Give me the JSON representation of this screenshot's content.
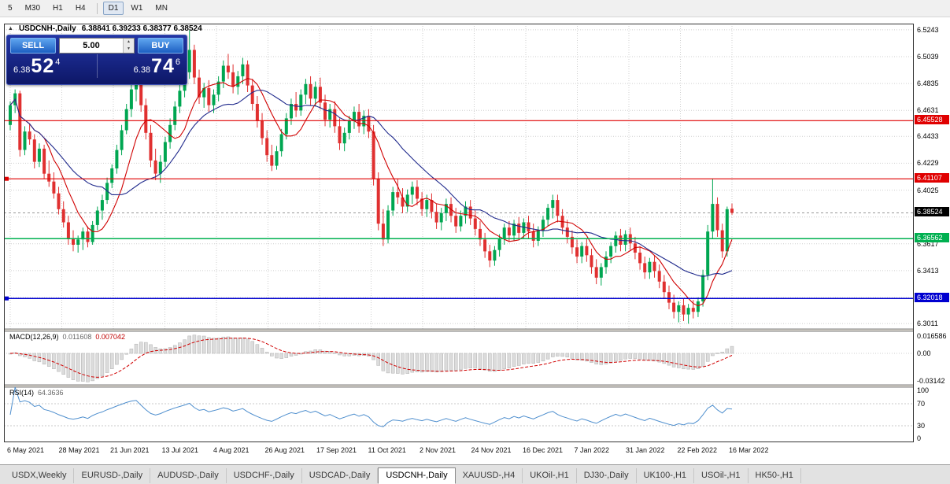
{
  "colors": {
    "bull": "#00a651",
    "bear": "#e03030",
    "ma_fast": "#d00000",
    "ma_slow": "#202a8c",
    "grid": "#cfcfcf",
    "level_red": "#e00000",
    "level_green": "#00b050",
    "level_blue": "#0000d0",
    "current_price_bg": "#000000",
    "macd_hist": "#dcdcdc",
    "macd_hist_stroke": "#b0b0b0",
    "macd_signal": "#d00000",
    "rsi_line": "#4f8fce"
  },
  "icons": {
    "collapse_arrow": "▲",
    "spin_up": "▲",
    "spin_down": "▼"
  },
  "toolbar": {
    "timeframe_groups": [
      [
        "5",
        "M30",
        "H1",
        "H4"
      ],
      [
        "D1",
        "W1",
        "MN"
      ]
    ],
    "active": "D1"
  },
  "readout": {
    "symbol": "USDCNH-,Daily",
    "ohlc": "6.38841 6.39233 6.38377 6.38524"
  },
  "trade_panel": {
    "sell_label": "SELL",
    "buy_label": "BUY",
    "volume": "5.00",
    "sell_price": {
      "prefix": "6.38",
      "big": "52",
      "sup": "4"
    },
    "buy_price": {
      "prefix": "6.38",
      "big": "74",
      "sup": "6"
    }
  },
  "tabs": {
    "labels": [
      "USDX,Weekly",
      "EURUSD-,Daily",
      "AUDUSD-,Daily",
      "USDCHF-,Daily",
      "USDCAD-,Daily",
      "USDCNH-,Daily",
      "XAUUSD-,H4",
      "UKOil-,H1",
      "DJ30-,Daily",
      "UK100-,H1",
      "USOil-,H1",
      "HK50-,H1"
    ],
    "active": "USDCNH-,Daily"
  },
  "chart_data": {
    "type": "candlestick",
    "title": "USDCNH-,Daily",
    "y_range": [
      6.297,
      6.529
    ],
    "price_ticks": [
      {
        "p": 6.5243,
        "t": "6.5243"
      },
      {
        "p": 6.5039,
        "t": "6.5039"
      },
      {
        "p": 6.4835,
        "t": "6.4835"
      },
      {
        "p": 6.4631,
        "t": "6.4631"
      },
      {
        "p": 6.4433,
        "t": "6.4433"
      },
      {
        "p": 6.4229,
        "t": "6.4229"
      },
      {
        "p": 6.4025,
        "t": "6.4025"
      },
      {
        "p": 6.3821,
        "t": ""
      },
      {
        "p": 6.3617,
        "t": "6.3617"
      },
      {
        "p": 6.3413,
        "t": "6.3413"
      },
      {
        "p": 6.3209,
        "t": ""
      },
      {
        "p": 6.3011,
        "t": "6.3011"
      }
    ],
    "levels": [
      {
        "p": 6.45528,
        "t": "6.45528",
        "color": "level_red",
        "width": 1.2
      },
      {
        "p": 6.41107,
        "t": "6.41107",
        "color": "level_red",
        "width": 1.2,
        "marker": true
      },
      {
        "p": 6.36562,
        "t": "6.36562",
        "color": "level_green",
        "width": 1.5
      },
      {
        "p": 6.32018,
        "t": "6.32018",
        "color": "level_blue",
        "width": 1.5,
        "marker": true
      }
    ],
    "current_price": {
      "p": 6.38524,
      "t": "6.38524"
    },
    "dates": [
      "6 May 2021",
      "28 May 2021",
      "21 Jun 2021",
      "13 Jul 2021",
      "4 Aug 2021",
      "26 Aug 2021",
      "17 Sep 2021",
      "11 Oct 2021",
      "2 Nov 2021",
      "24 Nov 2021",
      "16 Dec 2021",
      "7 Jan 2022",
      "31 Jan 2022",
      "22 Feb 2022",
      "16 Mar 2022"
    ],
    "ma_overlays": [
      {
        "period": 8,
        "color": "ma_fast"
      },
      {
        "period": 20,
        "color": "ma_slow"
      }
    ],
    "indicators": {
      "macd": {
        "label": "MACD(12,26,9)",
        "value_main": "0.011608",
        "value_signal": "0.007042",
        "fast": 12,
        "slow": 26,
        "signal": 9,
        "axis_max": "0.016586",
        "axis_zero": "0.00",
        "axis_min": "-0.03142"
      },
      "rsi": {
        "label": "RSI(14)",
        "value_text": "64.3636",
        "period": 14,
        "levels": [
          70,
          30
        ],
        "axis": [
          "100",
          "70",
          "30",
          "0"
        ]
      }
    },
    "candles": [
      [
        6.452,
        6.47,
        6.448,
        6.467
      ],
      [
        6.467,
        6.479,
        6.461,
        6.476
      ],
      [
        6.476,
        6.478,
        6.428,
        6.433
      ],
      [
        6.433,
        6.451,
        6.429,
        6.447
      ],
      [
        6.447,
        6.453,
        6.437,
        6.441
      ],
      [
        6.441,
        6.445,
        6.419,
        6.424
      ],
      [
        6.424,
        6.438,
        6.42,
        6.434
      ],
      [
        6.434,
        6.437,
        6.411,
        6.415
      ],
      [
        6.415,
        6.425,
        6.405,
        6.409
      ],
      [
        6.409,
        6.416,
        6.396,
        6.4
      ],
      [
        6.4,
        6.405,
        6.384,
        6.388
      ],
      [
        6.388,
        6.394,
        6.374,
        6.378
      ],
      [
        6.378,
        6.383,
        6.361,
        6.366
      ],
      [
        6.366,
        6.372,
        6.356,
        6.361
      ],
      [
        6.361,
        6.368,
        6.355,
        6.365
      ],
      [
        6.365,
        6.374,
        6.357,
        6.371
      ],
      [
        6.371,
        6.375,
        6.359,
        6.363
      ],
      [
        6.363,
        6.379,
        6.361,
        6.376
      ],
      [
        6.376,
        6.39,
        6.372,
        6.387
      ],
      [
        6.387,
        6.399,
        6.38,
        6.395
      ],
      [
        6.395,
        6.412,
        6.392,
        6.408
      ],
      [
        6.408,
        6.422,
        6.404,
        6.419
      ],
      [
        6.419,
        6.437,
        6.415,
        6.433
      ],
      [
        6.433,
        6.452,
        6.429,
        6.448
      ],
      [
        6.448,
        6.468,
        6.445,
        6.464
      ],
      [
        6.464,
        6.483,
        6.458,
        6.479
      ],
      [
        6.479,
        6.491,
        6.47,
        6.486
      ],
      [
        6.486,
        6.489,
        6.462,
        6.467
      ],
      [
        6.467,
        6.472,
        6.441,
        6.446
      ],
      [
        6.446,
        6.452,
        6.42,
        6.425
      ],
      [
        6.425,
        6.434,
        6.41,
        6.415
      ],
      [
        6.415,
        6.429,
        6.408,
        6.424
      ],
      [
        6.424,
        6.443,
        6.42,
        6.439
      ],
      [
        6.439,
        6.457,
        6.434,
        6.452
      ],
      [
        6.452,
        6.47,
        6.448,
        6.466
      ],
      [
        6.466,
        6.483,
        6.461,
        6.478
      ],
      [
        6.478,
        6.497,
        6.473,
        6.492
      ],
      [
        6.492,
        6.524,
        6.487,
        6.509
      ],
      [
        6.509,
        6.513,
        6.483,
        6.488
      ],
      [
        6.488,
        6.494,
        6.468,
        6.473
      ],
      [
        6.473,
        6.484,
        6.465,
        6.48
      ],
      [
        6.48,
        6.486,
        6.462,
        6.467
      ],
      [
        6.467,
        6.479,
        6.461,
        6.475
      ],
      [
        6.475,
        6.489,
        6.47,
        6.485
      ],
      [
        6.485,
        6.501,
        6.48,
        6.497
      ],
      [
        6.497,
        6.506,
        6.487,
        6.492
      ],
      [
        6.492,
        6.498,
        6.476,
        6.481
      ],
      [
        6.481,
        6.493,
        6.475,
        6.489
      ],
      [
        6.489,
        6.503,
        6.483,
        6.498
      ],
      [
        6.498,
        6.501,
        6.477,
        6.482
      ],
      [
        6.482,
        6.487,
        6.463,
        6.468
      ],
      [
        6.468,
        6.474,
        6.45,
        6.455
      ],
      [
        6.455,
        6.461,
        6.437,
        6.442
      ],
      [
        6.442,
        6.448,
        6.424,
        6.429
      ],
      [
        6.429,
        6.437,
        6.417,
        6.421
      ],
      [
        6.421,
        6.436,
        6.418,
        6.432
      ],
      [
        6.432,
        6.449,
        6.428,
        6.445
      ],
      [
        6.445,
        6.461,
        6.441,
        6.457
      ],
      [
        6.457,
        6.472,
        6.452,
        6.468
      ],
      [
        6.468,
        6.477,
        6.458,
        6.463
      ],
      [
        6.463,
        6.479,
        6.459,
        6.475
      ],
      [
        6.475,
        6.487,
        6.468,
        6.483
      ],
      [
        6.483,
        6.489,
        6.467,
        6.472
      ],
      [
        6.472,
        6.485,
        6.466,
        6.481
      ],
      [
        6.481,
        6.488,
        6.464,
        6.469
      ],
      [
        6.469,
        6.475,
        6.451,
        6.456
      ],
      [
        6.456,
        6.468,
        6.45,
        6.464
      ],
      [
        6.464,
        6.47,
        6.446,
        6.451
      ],
      [
        6.451,
        6.457,
        6.433,
        6.438
      ],
      [
        6.438,
        6.45,
        6.432,
        6.446
      ],
      [
        6.446,
        6.459,
        6.441,
        6.455
      ],
      [
        6.455,
        6.466,
        6.449,
        6.462
      ],
      [
        6.462,
        6.468,
        6.446,
        6.451
      ],
      [
        6.451,
        6.463,
        6.445,
        6.459
      ],
      [
        6.459,
        6.464,
        6.442,
        6.447
      ],
      [
        6.447,
        6.452,
        6.406,
        6.411
      ],
      [
        6.411,
        6.416,
        6.372,
        6.377
      ],
      [
        6.377,
        6.388,
        6.36,
        6.365
      ],
      [
        6.365,
        6.391,
        6.362,
        6.387
      ],
      [
        6.387,
        6.405,
        6.383,
        6.401
      ],
      [
        6.401,
        6.411,
        6.392,
        6.397
      ],
      [
        6.397,
        6.404,
        6.385,
        6.39
      ],
      [
        6.39,
        6.403,
        6.386,
        6.399
      ],
      [
        6.399,
        6.409,
        6.392,
        6.405
      ],
      [
        6.405,
        6.41,
        6.391,
        6.396
      ],
      [
        6.396,
        6.401,
        6.383,
        6.388
      ],
      [
        6.388,
        6.399,
        6.382,
        6.395
      ],
      [
        6.395,
        6.4,
        6.381,
        6.386
      ],
      [
        6.386,
        6.392,
        6.373,
        6.378
      ],
      [
        6.378,
        6.389,
        6.372,
        6.385
      ],
      [
        6.385,
        6.396,
        6.379,
        6.392
      ],
      [
        6.392,
        6.397,
        6.378,
        6.383
      ],
      [
        6.383,
        6.389,
        6.37,
        6.375
      ],
      [
        6.375,
        6.387,
        6.371,
        6.383
      ],
      [
        6.383,
        6.394,
        6.377,
        6.39
      ],
      [
        6.39,
        6.395,
        6.376,
        6.381
      ],
      [
        6.381,
        6.387,
        6.368,
        6.373
      ],
      [
        6.373,
        6.379,
        6.36,
        6.365
      ],
      [
        6.365,
        6.37,
        6.351,
        6.356
      ],
      [
        6.356,
        6.361,
        6.344,
        6.349
      ],
      [
        6.349,
        6.36,
        6.345,
        6.357
      ],
      [
        6.357,
        6.369,
        6.352,
        6.366
      ],
      [
        6.366,
        6.377,
        6.361,
        6.374
      ],
      [
        6.374,
        6.379,
        6.363,
        6.368
      ],
      [
        6.368,
        6.38,
        6.364,
        6.377
      ],
      [
        6.377,
        6.382,
        6.365,
        6.37
      ],
      [
        6.37,
        6.381,
        6.366,
        6.378
      ],
      [
        6.378,
        6.383,
        6.366,
        6.371
      ],
      [
        6.371,
        6.377,
        6.359,
        6.364
      ],
      [
        6.364,
        6.375,
        6.36,
        6.372
      ],
      [
        6.372,
        6.383,
        6.367,
        6.38
      ],
      [
        6.38,
        6.392,
        6.375,
        6.389
      ],
      [
        6.389,
        6.399,
        6.381,
        6.395
      ],
      [
        6.395,
        6.399,
        6.378,
        6.383
      ],
      [
        6.383,
        6.388,
        6.369,
        6.374
      ],
      [
        6.374,
        6.38,
        6.362,
        6.367
      ],
      [
        6.367,
        6.372,
        6.354,
        6.359
      ],
      [
        6.359,
        6.365,
        6.347,
        6.352
      ],
      [
        6.352,
        6.363,
        6.347,
        6.36
      ],
      [
        6.36,
        6.366,
        6.348,
        6.353
      ],
      [
        6.353,
        6.358,
        6.339,
        6.344
      ],
      [
        6.344,
        6.35,
        6.331,
        6.336
      ],
      [
        6.336,
        6.347,
        6.33,
        6.344
      ],
      [
        6.344,
        6.356,
        6.339,
        6.352
      ],
      [
        6.352,
        6.363,
        6.347,
        6.36
      ],
      [
        6.36,
        6.371,
        6.355,
        6.368
      ],
      [
        6.368,
        6.373,
        6.356,
        6.361
      ],
      [
        6.361,
        6.372,
        6.356,
        6.369
      ],
      [
        6.369,
        6.374,
        6.357,
        6.362
      ],
      [
        6.362,
        6.367,
        6.35,
        6.355
      ],
      [
        6.355,
        6.36,
        6.342,
        6.347
      ],
      [
        6.347,
        6.352,
        6.335,
        6.34
      ],
      [
        6.34,
        6.351,
        6.335,
        6.348
      ],
      [
        6.348,
        6.353,
        6.336,
        6.341
      ],
      [
        6.341,
        6.346,
        6.328,
        6.333
      ],
      [
        6.333,
        6.338,
        6.32,
        6.325
      ],
      [
        6.325,
        6.33,
        6.312,
        6.317
      ],
      [
        6.317,
        6.323,
        6.305,
        6.31
      ],
      [
        6.31,
        6.318,
        6.302,
        6.315
      ],
      [
        6.315,
        6.32,
        6.303,
        6.308
      ],
      [
        6.308,
        6.316,
        6.301,
        6.313
      ],
      [
        6.313,
        6.319,
        6.305,
        6.31
      ],
      [
        6.31,
        6.321,
        6.306,
        6.318
      ],
      [
        6.318,
        6.342,
        6.314,
        6.338
      ],
      [
        6.338,
        6.376,
        6.334,
        6.371
      ],
      [
        6.371,
        6.411,
        6.366,
        6.392
      ],
      [
        6.392,
        6.397,
        6.367,
        6.372
      ],
      [
        6.372,
        6.377,
        6.351,
        6.356
      ],
      [
        6.356,
        6.39,
        6.352,
        6.388
      ],
      [
        6.38841,
        6.39233,
        6.38377,
        6.38524
      ]
    ]
  }
}
